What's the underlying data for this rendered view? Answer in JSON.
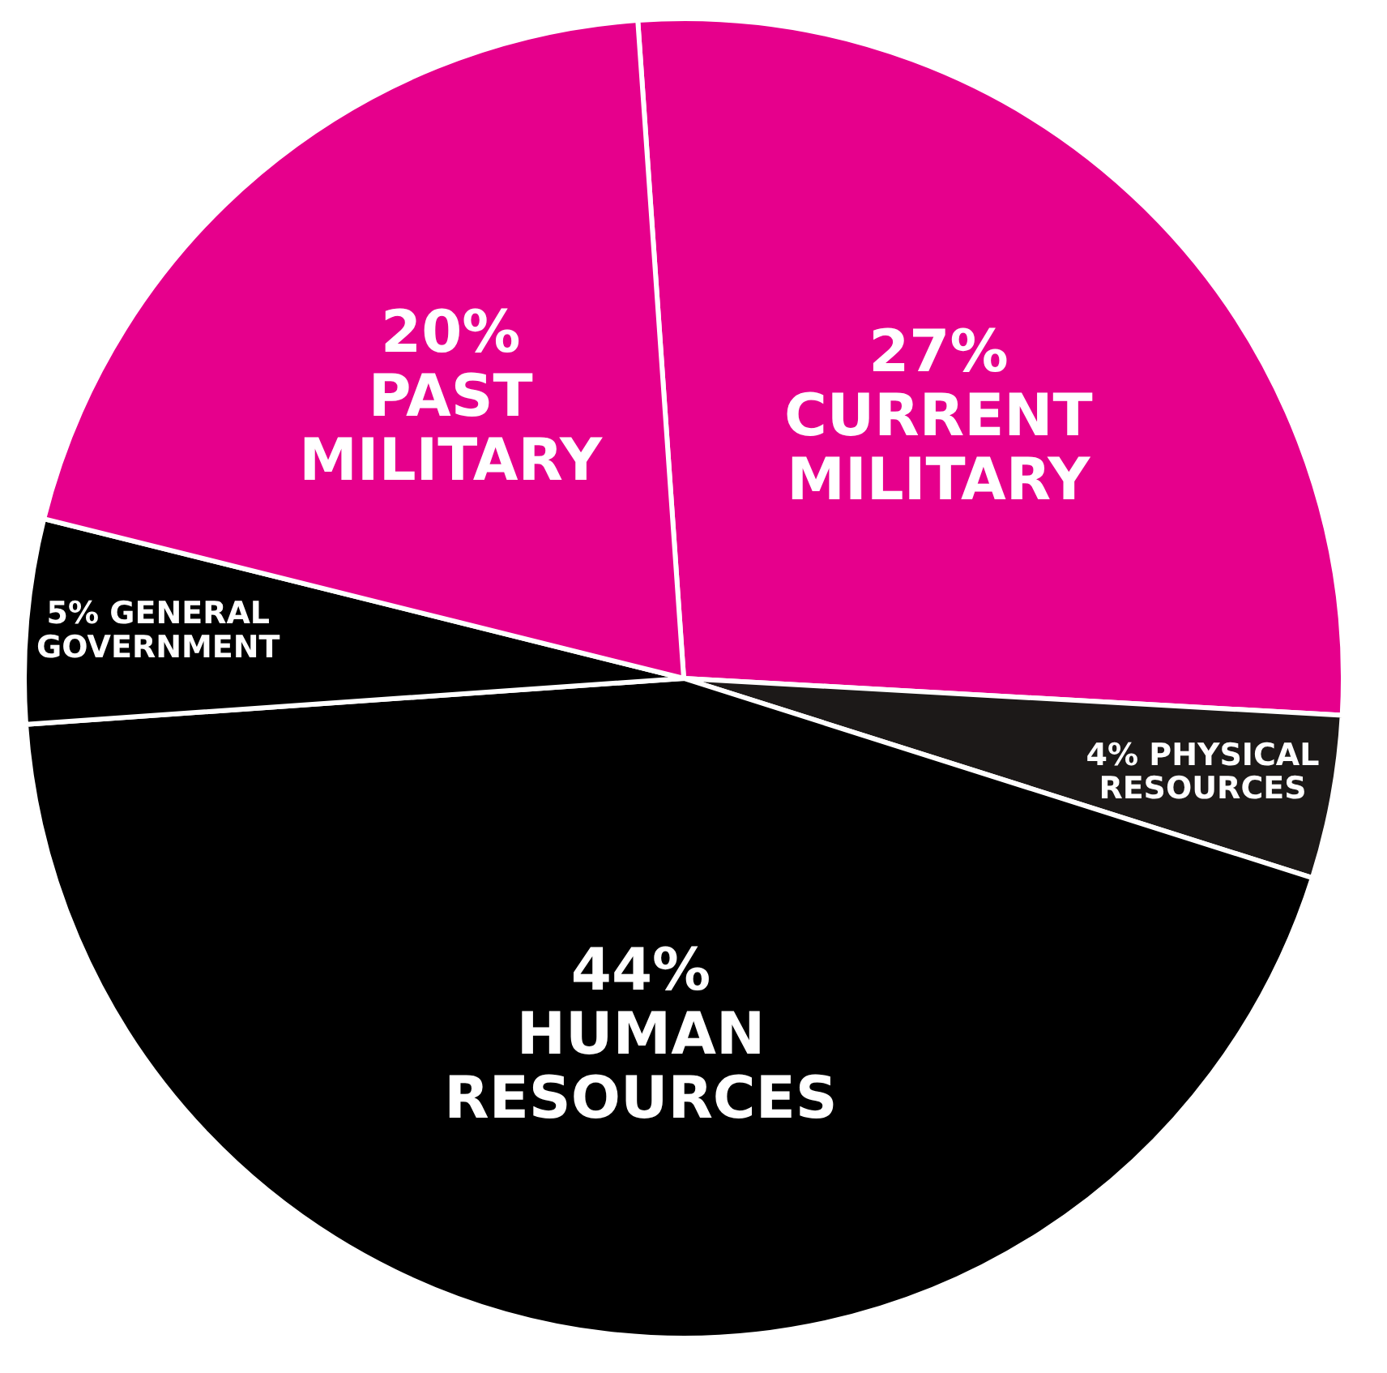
{
  "chart_data": {
    "type": "pie",
    "categories": [
      "CURRENT MILITARY",
      "PHYSICAL RESOURCES",
      "HUMAN RESOURCES",
      "GENERAL GOVERNMENT",
      "PAST MILITARY"
    ],
    "values": [
      27,
      4,
      44,
      5,
      20
    ],
    "colors": [
      "#e6008c",
      "#1c1918",
      "#000000",
      "#000000",
      "#e6008c"
    ],
    "value_labels": [
      "27%",
      "4%",
      "44%",
      "5%",
      "20%"
    ],
    "legend": false
  }
}
